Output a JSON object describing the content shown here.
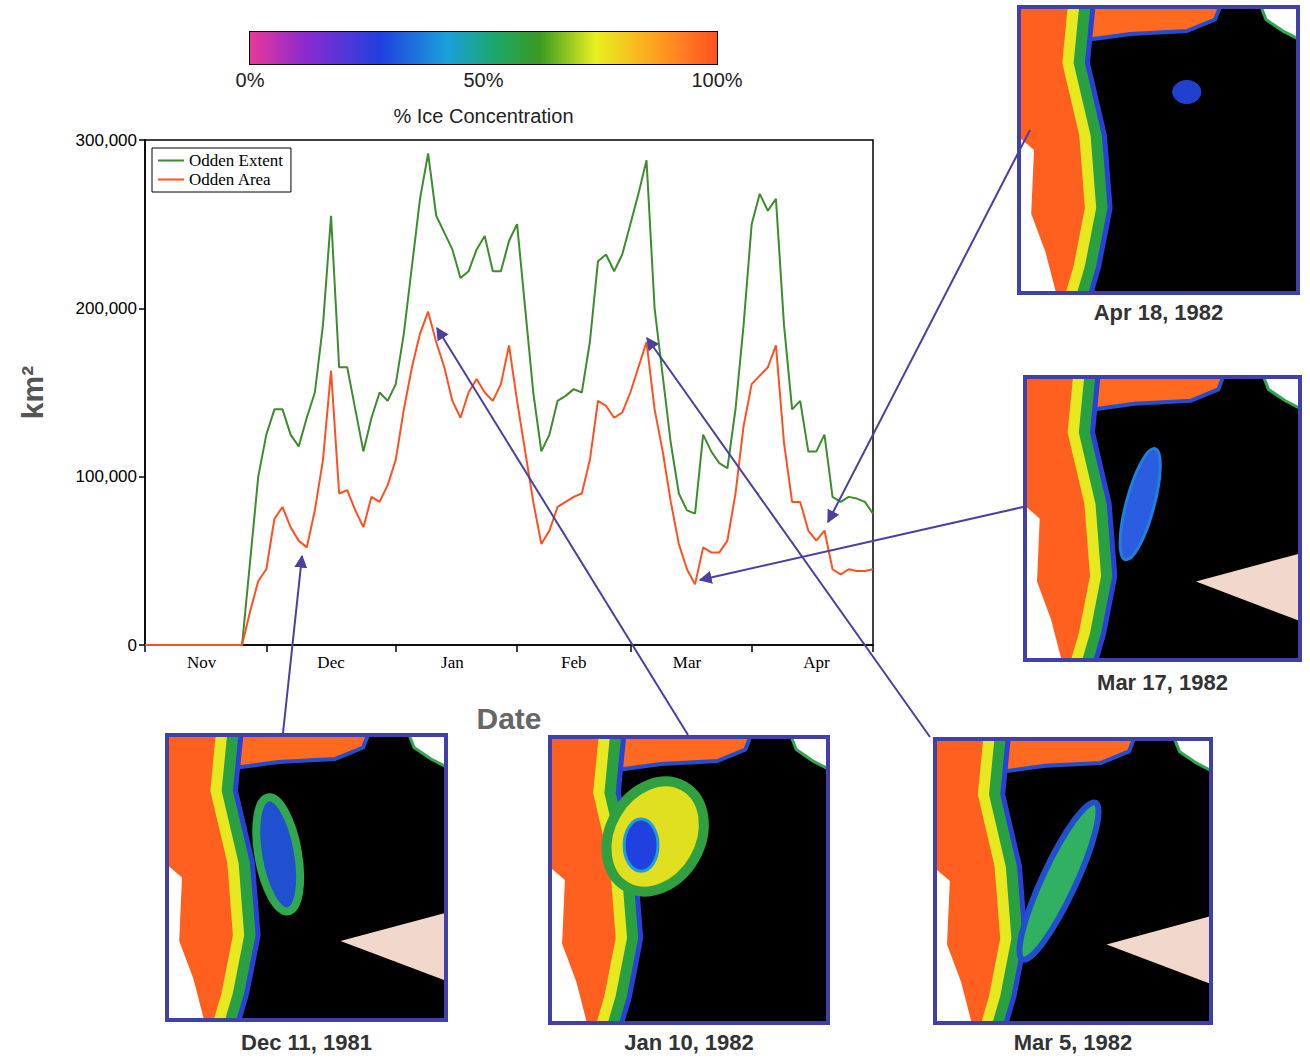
{
  "chart_data": {
    "type": "line",
    "x_label": "Date",
    "y_label": "km²",
    "categories": [
      null,
      null,
      null,
      null,
      null,
      null,
      null,
      "Nov",
      null,
      null,
      null,
      null,
      null,
      null,
      null,
      null,
      null,
      null,
      null,
      null,
      null,
      null,
      null,
      "Dec",
      null,
      null,
      null,
      null,
      null,
      null,
      null,
      null,
      null,
      null,
      null,
      null,
      null,
      null,
      "Jan",
      null,
      null,
      null,
      null,
      null,
      null,
      null,
      null,
      null,
      null,
      null,
      null,
      null,
      null,
      "Feb",
      null,
      null,
      null,
      null,
      null,
      null,
      null,
      null,
      null,
      null,
      null,
      null,
      null,
      "Mar",
      null,
      null,
      null,
      null,
      null,
      null,
      null,
      null,
      null,
      null,
      null,
      null,
      null,
      null,
      null,
      "Apr",
      null,
      null,
      null,
      null,
      null,
      null,
      null
    ],
    "series": [
      {
        "name": "Odden Extent",
        "color": "#3d8c2d",
        "values": [
          0,
          0,
          0,
          0,
          0,
          0,
          0,
          0,
          0,
          0,
          0,
          0,
          0,
          50000,
          100000,
          125000,
          140000,
          140000,
          125000,
          118000,
          135000,
          150000,
          190000,
          255000,
          165000,
          165000,
          140000,
          115000,
          135000,
          150000,
          145000,
          155000,
          185000,
          225000,
          265000,
          292000,
          255000,
          245000,
          235000,
          218000,
          222000,
          235000,
          243000,
          222000,
          222000,
          240000,
          250000,
          200000,
          150000,
          115000,
          125000,
          145000,
          148000,
          152000,
          150000,
          180000,
          228000,
          232000,
          222000,
          232000,
          250000,
          268000,
          288000,
          200000,
          160000,
          120000,
          90000,
          80000,
          78000,
          125000,
          115000,
          108000,
          105000,
          140000,
          190000,
          250000,
          268000,
          258000,
          265000,
          190000,
          140000,
          145000,
          115000,
          115000,
          125000,
          88000,
          85000,
          88000,
          87000,
          85000,
          78000
        ]
      },
      {
        "name": "Odden Area",
        "color": "#ff5020",
        "values": [
          0,
          0,
          0,
          0,
          0,
          0,
          0,
          0,
          0,
          0,
          0,
          0,
          0,
          20000,
          38000,
          45000,
          75000,
          82000,
          70000,
          62000,
          58000,
          80000,
          110000,
          163000,
          90000,
          92000,
          80000,
          70000,
          88000,
          85000,
          95000,
          110000,
          140000,
          165000,
          185000,
          198000,
          180000,
          165000,
          145000,
          135000,
          150000,
          158000,
          150000,
          145000,
          155000,
          178000,
          145000,
          115000,
          85000,
          60000,
          68000,
          82000,
          85000,
          88000,
          90000,
          110000,
          145000,
          142000,
          135000,
          138000,
          150000,
          165000,
          180000,
          140000,
          115000,
          85000,
          60000,
          45000,
          36000,
          58000,
          55000,
          55000,
          62000,
          90000,
          130000,
          155000,
          160000,
          165000,
          178000,
          120000,
          85000,
          85000,
          68000,
          62000,
          68000,
          45000,
          42000,
          45000,
          44000,
          44000,
          45000
        ]
      }
    ],
    "ylim": [
      0,
      300000
    ],
    "yticks": [
      0,
      {
        "value": 100000,
        "label": "100,000"
      },
      {
        "value": 200000,
        "label": "200,000"
      },
      {
        "value": 300000,
        "label": "300,000"
      }
    ],
    "grid": false,
    "legend": "upper left",
    "colorbar": {
      "title": "% Ice Concentration",
      "range": [
        0,
        100
      ],
      "ticks": [
        {
          "value": 0,
          "label": "0%"
        },
        {
          "value": 50,
          "label": "50%"
        },
        {
          "value": 100,
          "label": "100%"
        }
      ]
    },
    "maps": [
      {
        "caption": "Dec 11, 1981"
      },
      {
        "caption": "Jan 10, 1982"
      },
      {
        "caption": "Mar 5, 1982"
      },
      {
        "caption": "Mar 17, 1982"
      },
      {
        "caption": "Apr 18, 1982"
      }
    ]
  }
}
